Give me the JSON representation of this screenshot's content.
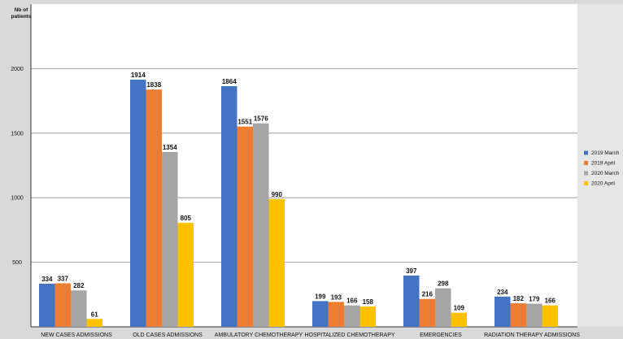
{
  "chart_data": {
    "type": "bar",
    "ylabel": "Nb of patients",
    "ylim": [
      0,
      2500
    ],
    "yticks": [
      500,
      1000,
      1500,
      2000
    ],
    "grid": true,
    "legend_position": "right",
    "categories": [
      "NEW CASES ADMISSIONS",
      "OLD CASES ADMISSIONS",
      "AMBULATORY CHEMOTHERAPY",
      "HOSPITALIZED CHEMOTHERAPY",
      "EMERGENCIES",
      "RADIATION THERAPY ADMISSIONS"
    ],
    "series": [
      {
        "name": "2019 March",
        "color": "#4472c4",
        "values": [
          334,
          1914,
          1864,
          199,
          397,
          234
        ]
      },
      {
        "name": "2019 April",
        "color": "#ed7d31",
        "values": [
          337,
          1838,
          1551,
          193,
          216,
          182
        ]
      },
      {
        "name": "2020 March",
        "color": "#a5a5a5",
        "values": [
          282,
          1354,
          1576,
          166,
          298,
          179
        ]
      },
      {
        "name": "2020 April",
        "color": "#ffc000",
        "values": [
          61,
          805,
          990,
          158,
          109,
          166
        ]
      }
    ]
  }
}
